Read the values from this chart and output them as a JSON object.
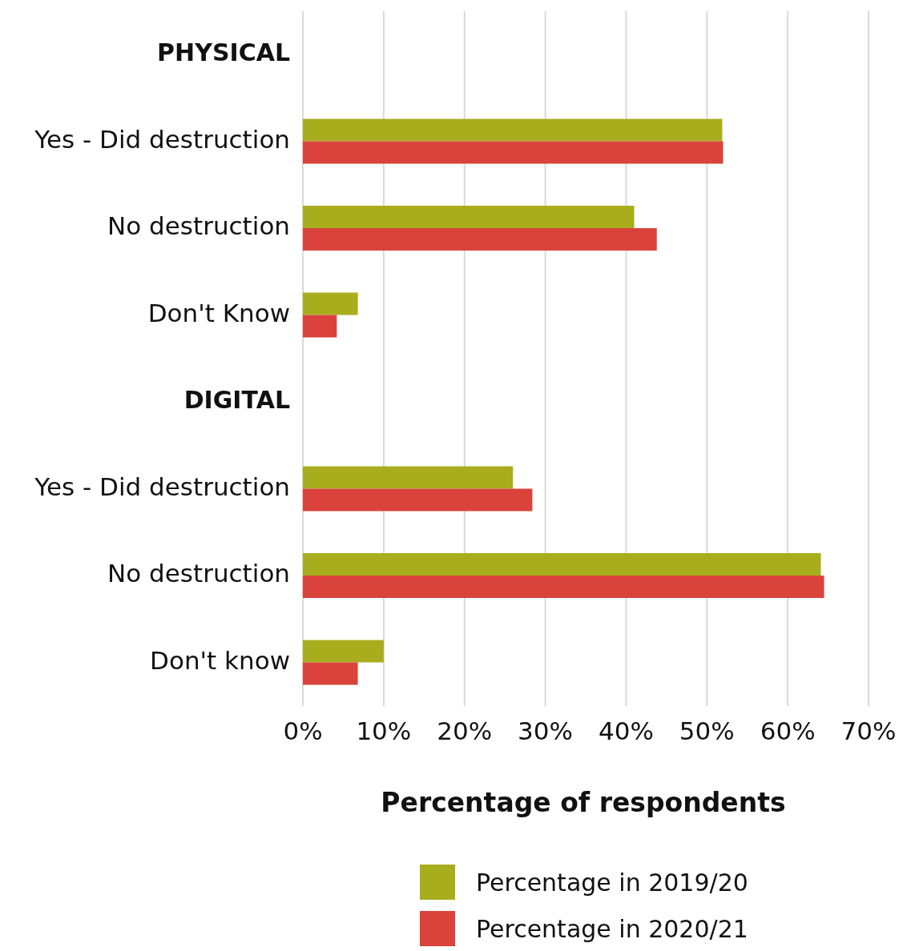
{
  "chart_data": {
    "type": "bar",
    "orientation": "horizontal",
    "xlabel": "Percentage of respondents",
    "categories": [
      "PHYSICAL",
      "Yes - Did destruction",
      "No destruction",
      "Don't Know",
      "DIGITAL",
      "Yes - Did destruction",
      "No destruction",
      "Don't know"
    ],
    "series": [
      {
        "name": "Percentage in 2019/20",
        "color": "#a8ad1e",
        "values": [
          null,
          51.9,
          41,
          6.8,
          null,
          26,
          64.1,
          10
        ]
      },
      {
        "name": "Percentage in 2020/21",
        "color": "#d9433b",
        "values": [
          null,
          52,
          43.8,
          4.2,
          null,
          28.4,
          64.5,
          6.8
        ]
      }
    ],
    "xlim": [
      0,
      70
    ],
    "xticks": [
      {
        "value": 0,
        "label": "0%"
      },
      {
        "value": 10,
        "label": "10%"
      },
      {
        "value": 20,
        "label": "20%"
      },
      {
        "value": 30,
        "label": "30%"
      },
      {
        "value": 40,
        "label": "40%"
      },
      {
        "value": 50,
        "label": "50%"
      },
      {
        "value": 60,
        "label": "60%"
      },
      {
        "value": 70,
        "label": "70%"
      }
    ],
    "grid": "x",
    "legend": "bottom"
  }
}
